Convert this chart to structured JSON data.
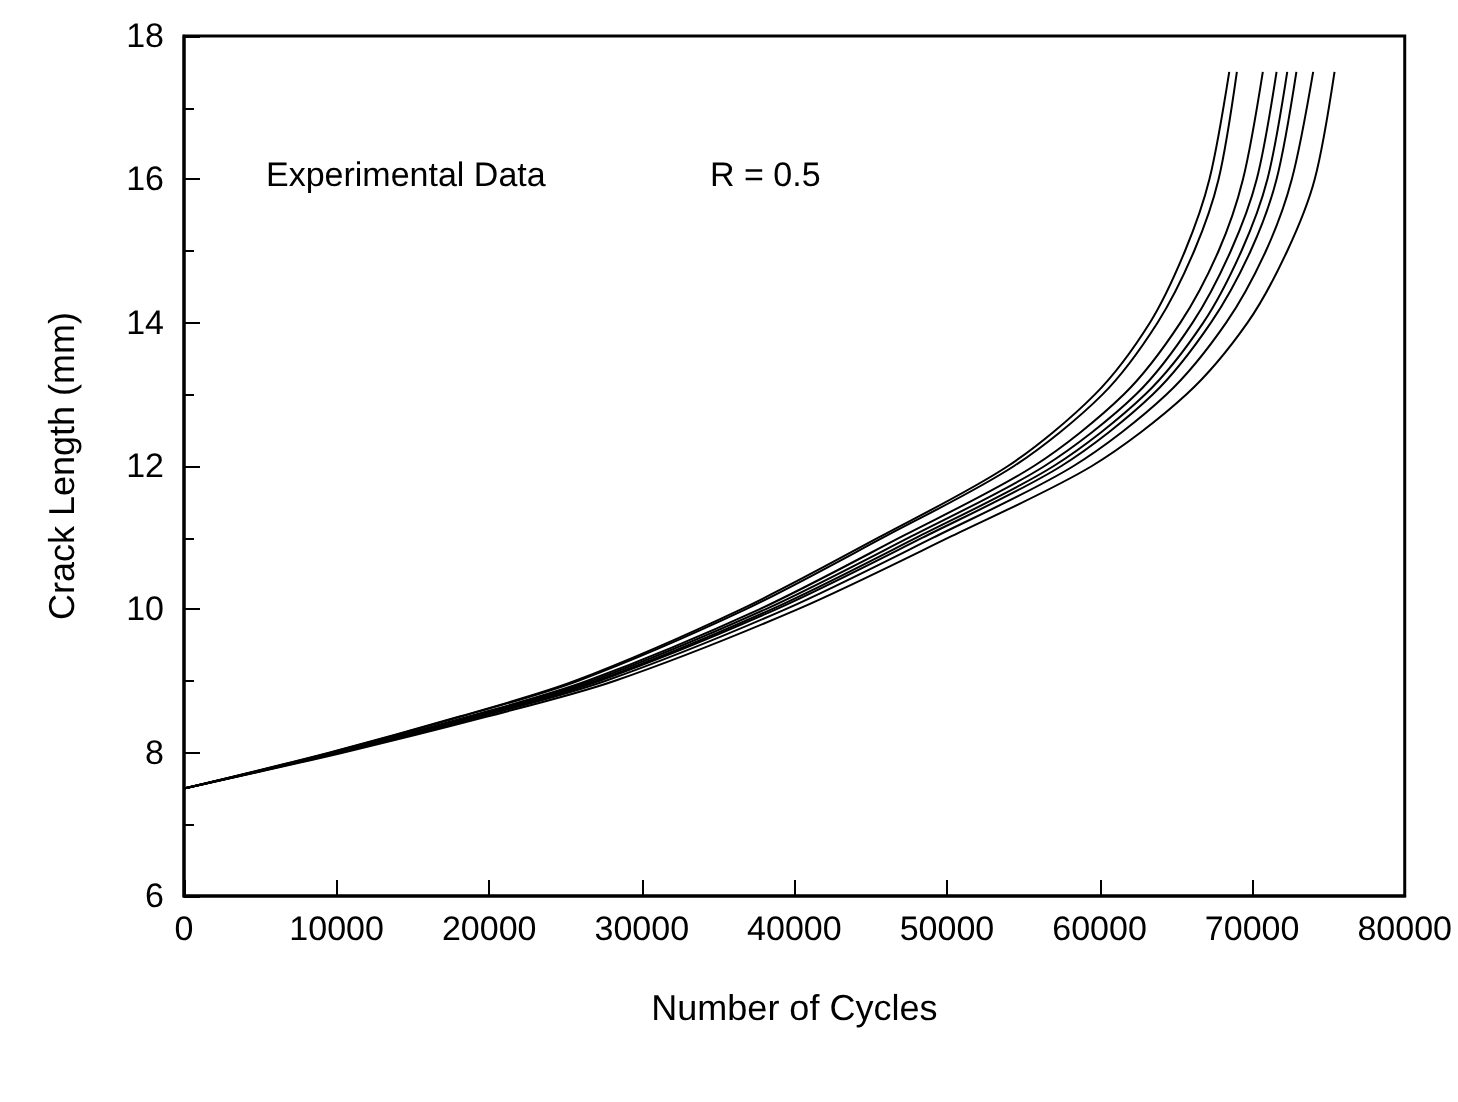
{
  "chart_data": {
    "type": "line",
    "xlabel": "Number of Cycles",
    "ylabel": "Crack Length (mm)",
    "annotations": [
      "Experimental Data",
      "R = 0.5"
    ],
    "xlim": [
      0,
      80000
    ],
    "xticks": [
      0,
      10000,
      20000,
      30000,
      40000,
      50000,
      60000,
      70000,
      80000
    ],
    "ylim": [
      6,
      18
    ],
    "yticks": [
      6,
      8,
      10,
      12,
      14,
      16,
      18
    ],
    "grid": false,
    "marker": "none",
    "line_style": "solid",
    "series": [
      {
        "color": "#000000",
        "x": [
          0,
          9500,
          18000,
          25600,
          36500,
          45500,
          54000,
          59700,
          63300,
          65600,
          67200,
          68500
        ],
        "values": [
          7.5,
          8,
          8.5,
          9,
          10,
          11,
          12,
          13,
          14,
          15,
          16,
          17.5
        ]
      },
      {
        "color": "#000000",
        "x": [
          0,
          9600,
          18100,
          25800,
          36800,
          45800,
          54400,
          60200,
          63800,
          66200,
          67800,
          69000
        ],
        "values": [
          7.5,
          8,
          8.5,
          9,
          10,
          11,
          12,
          13,
          14,
          15,
          16,
          17.5
        ]
      },
      {
        "color": "#000000",
        "x": [
          0,
          9800,
          18600,
          26400,
          37700,
          46900,
          55700,
          61600,
          65300,
          67800,
          69400,
          70700
        ],
        "values": [
          7.5,
          8,
          8.5,
          9,
          10,
          11,
          12,
          13,
          14,
          15,
          16,
          17.5
        ]
      },
      {
        "color": "#000000",
        "x": [
          0,
          9900,
          18800,
          26700,
          38100,
          47500,
          56400,
          62400,
          66100,
          68600,
          70300,
          71600
        ],
        "values": [
          7.5,
          8,
          8.5,
          9,
          10,
          11,
          12,
          13,
          14,
          15,
          16,
          17.5
        ]
      },
      {
        "color": "#000000",
        "x": [
          0,
          10000,
          19000,
          27000,
          38500,
          48000,
          57000,
          63000,
          66800,
          69300,
          71000,
          72300
        ],
        "values": [
          7.5,
          8,
          8.5,
          9,
          10,
          11,
          12,
          13,
          14,
          15,
          16,
          17.5
        ]
      },
      {
        "color": "#000000",
        "x": [
          0,
          10100,
          19200,
          27200,
          38800,
          48400,
          57500,
          63500,
          67300,
          69900,
          71600,
          72900
        ],
        "values": [
          7.5,
          8,
          8.5,
          9,
          10,
          11,
          12,
          13,
          14,
          15,
          16,
          17.5
        ]
      },
      {
        "color": "#000000",
        "x": [
          0,
          10200,
          19400,
          27600,
          39400,
          49100,
          58300,
          64400,
          68300,
          70900,
          72600,
          74000
        ],
        "values": [
          7.5,
          8,
          8.5,
          9,
          10,
          11,
          12,
          13,
          14,
          15,
          16,
          17.5
        ]
      },
      {
        "color": "#000000",
        "x": [
          0,
          10400,
          19800,
          28200,
          40200,
          50100,
          59500,
          65700,
          69700,
          72300,
          74100,
          75400
        ],
        "values": [
          7.5,
          8,
          8.5,
          9,
          10,
          11,
          12,
          13,
          14,
          15,
          16,
          17.5
        ]
      }
    ]
  }
}
